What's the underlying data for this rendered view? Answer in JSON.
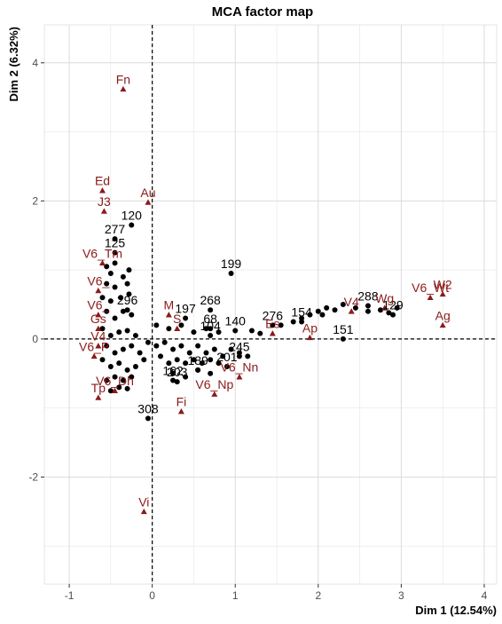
{
  "chart_data": {
    "type": "scatter",
    "title": "MCA factor map",
    "xlabel": "Dim 1 (12.54%)",
    "ylabel": "Dim 2 (6.32%)",
    "xlim": [
      -1.3,
      4.15
    ],
    "ylim": [
      -3.55,
      4.55
    ],
    "xticks": [
      -1,
      0,
      1,
      2,
      3,
      4
    ],
    "yticks": [
      -2,
      0,
      2,
      4
    ],
    "grid": true,
    "reference_lines": {
      "x": 0,
      "y": 0,
      "style": "dashed"
    },
    "colors": {
      "individuals": "#000000",
      "categories": "#8b1a1a",
      "grid": "#e6e6e6",
      "panel": "#ffffff"
    },
    "series": [
      {
        "marker": "circle",
        "points": [
          {
            "x": -0.55,
            "y": 1.05,
            "label": ""
          },
          {
            "x": -0.5,
            "y": 0.95,
            "label": ""
          },
          {
            "x": -0.45,
            "y": 1.1,
            "label": ""
          },
          {
            "x": -0.35,
            "y": 0.9,
            "label": ""
          },
          {
            "x": -0.28,
            "y": 1.0,
            "label": ""
          },
          {
            "x": -0.55,
            "y": 0.8,
            "label": ""
          },
          {
            "x": -0.45,
            "y": 0.75,
            "label": ""
          },
          {
            "x": -0.3,
            "y": 0.8,
            "label": ""
          },
          {
            "x": -0.6,
            "y": 0.6,
            "label": ""
          },
          {
            "x": -0.5,
            "y": 0.55,
            "label": ""
          },
          {
            "x": -0.38,
            "y": 0.6,
            "label": ""
          },
          {
            "x": -0.28,
            "y": 0.65,
            "label": ""
          },
          {
            "x": -0.55,
            "y": 0.4,
            "label": ""
          },
          {
            "x": -0.45,
            "y": 0.3,
            "label": ""
          },
          {
            "x": -0.35,
            "y": 0.4,
            "label": ""
          },
          {
            "x": -0.25,
            "y": 0.35,
            "label": ""
          },
          {
            "x": -0.6,
            "y": 0.15,
            "label": ""
          },
          {
            "x": -0.5,
            "y": 0.05,
            "label": ""
          },
          {
            "x": -0.4,
            "y": 0.1,
            "label": ""
          },
          {
            "x": -0.3,
            "y": 0.12,
            "label": ""
          },
          {
            "x": -0.2,
            "y": 0.05,
            "label": ""
          },
          {
            "x": -0.55,
            "y": -0.1,
            "label": ""
          },
          {
            "x": -0.45,
            "y": -0.2,
            "label": ""
          },
          {
            "x": -0.35,
            "y": -0.15,
            "label": ""
          },
          {
            "x": -0.25,
            "y": -0.1,
            "label": ""
          },
          {
            "x": -0.15,
            "y": -0.2,
            "label": ""
          },
          {
            "x": -0.6,
            "y": -0.3,
            "label": ""
          },
          {
            "x": -0.5,
            "y": -0.4,
            "label": ""
          },
          {
            "x": -0.4,
            "y": -0.35,
            "label": ""
          },
          {
            "x": -0.3,
            "y": -0.45,
            "label": ""
          },
          {
            "x": -0.2,
            "y": -0.4,
            "label": ""
          },
          {
            "x": -0.1,
            "y": -0.3,
            "label": ""
          },
          {
            "x": -0.55,
            "y": -0.6,
            "label": ""
          },
          {
            "x": -0.45,
            "y": -0.55,
            "label": ""
          },
          {
            "x": -0.35,
            "y": -0.6,
            "label": ""
          },
          {
            "x": -0.25,
            "y": -0.55,
            "label": ""
          },
          {
            "x": -0.5,
            "y": -0.75,
            "label": ""
          },
          {
            "x": -0.4,
            "y": -0.7,
            "label": ""
          },
          {
            "x": -0.3,
            "y": -0.72,
            "label": ""
          },
          {
            "x": -0.05,
            "y": -0.05,
            "label": ""
          },
          {
            "x": 0.05,
            "y": -0.1,
            "label": ""
          },
          {
            "x": 0.15,
            "y": -0.05,
            "label": ""
          },
          {
            "x": 0.25,
            "y": -0.15,
            "label": ""
          },
          {
            "x": 0.35,
            "y": -0.1,
            "label": ""
          },
          {
            "x": 0.45,
            "y": -0.2,
            "label": ""
          },
          {
            "x": 0.55,
            "y": -0.1,
            "label": ""
          },
          {
            "x": 0.65,
            "y": -0.2,
            "label": ""
          },
          {
            "x": 0.75,
            "y": -0.15,
            "label": ""
          },
          {
            "x": 0.85,
            "y": -0.25,
            "label": ""
          },
          {
            "x": 0.95,
            "y": -0.15,
            "label": ""
          },
          {
            "x": 1.05,
            "y": -0.2,
            "label": ""
          },
          {
            "x": 1.15,
            "y": -0.25,
            "label": ""
          },
          {
            "x": 0.1,
            "y": -0.25,
            "label": ""
          },
          {
            "x": 0.2,
            "y": -0.35,
            "label": ""
          },
          {
            "x": 0.3,
            "y": -0.3,
            "label": ""
          },
          {
            "x": 0.4,
            "y": -0.35,
            "label": ""
          },
          {
            "x": 0.5,
            "y": -0.3,
            "label": ""
          },
          {
            "x": 0.6,
            "y": -0.35,
            "label": ""
          },
          {
            "x": 0.7,
            "y": -0.3,
            "label": ""
          },
          {
            "x": 0.8,
            "y": -0.35,
            "label": ""
          },
          {
            "x": 0.25,
            "y": -0.5,
            "label": ""
          },
          {
            "x": 0.4,
            "y": -0.55,
            "label": ""
          },
          {
            "x": 0.55,
            "y": -0.45,
            "label": ""
          },
          {
            "x": 0.7,
            "y": -0.5,
            "label": ""
          },
          {
            "x": 0.05,
            "y": 0.2,
            "label": ""
          },
          {
            "x": 0.2,
            "y": 0.15,
            "label": ""
          },
          {
            "x": 0.35,
            "y": 0.2,
            "label": ""
          },
          {
            "x": 0.5,
            "y": 0.1,
            "label": ""
          },
          {
            "x": 0.65,
            "y": 0.15,
            "label": ""
          },
          {
            "x": 0.8,
            "y": 0.1,
            "label": ""
          },
          {
            "x": 1.2,
            "y": 0.12,
            "label": ""
          },
          {
            "x": 1.3,
            "y": 0.08,
            "label": ""
          },
          {
            "x": 1.55,
            "y": 0.2,
            "label": ""
          },
          {
            "x": 1.7,
            "y": 0.25,
            "label": ""
          },
          {
            "x": 1.8,
            "y": 0.3,
            "label": ""
          },
          {
            "x": 1.9,
            "y": 0.35,
            "label": ""
          },
          {
            "x": 2.0,
            "y": 0.4,
            "label": ""
          },
          {
            "x": 2.05,
            "y": 0.35,
            "label": ""
          },
          {
            "x": 2.1,
            "y": 0.45,
            "label": ""
          },
          {
            "x": 2.2,
            "y": 0.42,
            "label": ""
          },
          {
            "x": 2.3,
            "y": 0.5,
            "label": ""
          },
          {
            "x": 2.45,
            "y": 0.45,
            "label": ""
          },
          {
            "x": 2.6,
            "y": 0.4,
            "label": ""
          },
          {
            "x": 2.75,
            "y": 0.42,
            "label": ""
          },
          {
            "x": 2.85,
            "y": 0.38,
            "label": ""
          },
          {
            "x": 2.95,
            "y": 0.45,
            "label": ""
          },
          {
            "x": 0.95,
            "y": 0.95,
            "label": "199"
          },
          {
            "x": 0.7,
            "y": 0.42,
            "label": "268"
          },
          {
            "x": 0.4,
            "y": 0.3,
            "label": "197"
          },
          {
            "x": 0.7,
            "y": 0.15,
            "label": "68"
          },
          {
            "x": 1.0,
            "y": 0.12,
            "label": "140"
          },
          {
            "x": 0.7,
            "y": 0.05,
            "label": "104"
          },
          {
            "x": 1.45,
            "y": 0.2,
            "label": "276"
          },
          {
            "x": -0.25,
            "y": 1.65,
            "label": "120"
          },
          {
            "x": -0.45,
            "y": 1.45,
            "label": "277"
          },
          {
            "x": -0.45,
            "y": 1.25,
            "label": "125"
          },
          {
            "x": -0.3,
            "y": 0.42,
            "label": "296"
          },
          {
            "x": 1.8,
            "y": 0.25,
            "label": "154"
          },
          {
            "x": 2.3,
            "y": 0.0,
            "label": "151"
          },
          {
            "x": 2.6,
            "y": 0.48,
            "label": "288"
          },
          {
            "x": 2.9,
            "y": 0.35,
            "label": "129"
          },
          {
            "x": 0.9,
            "y": -0.4,
            "label": "201"
          },
          {
            "x": 0.25,
            "y": -0.6,
            "label": "162"
          },
          {
            "x": 0.3,
            "y": -0.62,
            "label": "203"
          },
          {
            "x": 0.55,
            "y": -0.45,
            "label": "189"
          },
          {
            "x": 1.05,
            "y": -0.25,
            "label": "245"
          },
          {
            "x": -0.05,
            "y": -1.15,
            "label": "308"
          }
        ]
      },
      {
        "marker": "triangle",
        "points": [
          {
            "x": -0.35,
            "y": 3.62,
            "label": "Fn"
          },
          {
            "x": -0.6,
            "y": 2.15,
            "label": "Ed"
          },
          {
            "x": -0.05,
            "y": 1.98,
            "label": "Au"
          },
          {
            "x": -0.58,
            "y": 1.85,
            "label": "J3"
          },
          {
            "x": -0.6,
            "y": 1.1,
            "label": "V6_Tm"
          },
          {
            "x": -0.65,
            "y": 0.7,
            "label": "V6_"
          },
          {
            "x": -0.65,
            "y": 0.35,
            "label": "V6_"
          },
          {
            "x": -0.65,
            "y": 0.15,
            "label": "Gs"
          },
          {
            "x": -0.65,
            "y": -0.1,
            "label": "V4"
          },
          {
            "x": -0.7,
            "y": -0.25,
            "label": "V6_P"
          },
          {
            "x": -0.65,
            "y": -0.85,
            "label": "Tp"
          },
          {
            "x": -0.45,
            "y": -0.75,
            "label": "V6_Dh"
          },
          {
            "x": 0.2,
            "y": 0.35,
            "label": "M"
          },
          {
            "x": 0.3,
            "y": 0.15,
            "label": "S"
          },
          {
            "x": 0.35,
            "y": -1.05,
            "label": "Fi"
          },
          {
            "x": 1.05,
            "y": -0.55,
            "label": "V6_Nn"
          },
          {
            "x": 0.75,
            "y": -0.8,
            "label": "V6_Np"
          },
          {
            "x": 1.45,
            "y": 0.08,
            "label": "Es"
          },
          {
            "x": 1.9,
            "y": 0.02,
            "label": "Ap"
          },
          {
            "x": 3.35,
            "y": 0.6,
            "label": "V6_Wt"
          },
          {
            "x": 3.5,
            "y": 0.65,
            "label": "W2"
          },
          {
            "x": 3.5,
            "y": 0.2,
            "label": "Ag"
          },
          {
            "x": 2.4,
            "y": 0.4,
            "label": "V4"
          },
          {
            "x": 2.8,
            "y": 0.45,
            "label": "Wg"
          },
          {
            "x": -0.1,
            "y": -2.5,
            "label": "Vi"
          }
        ]
      }
    ]
  }
}
